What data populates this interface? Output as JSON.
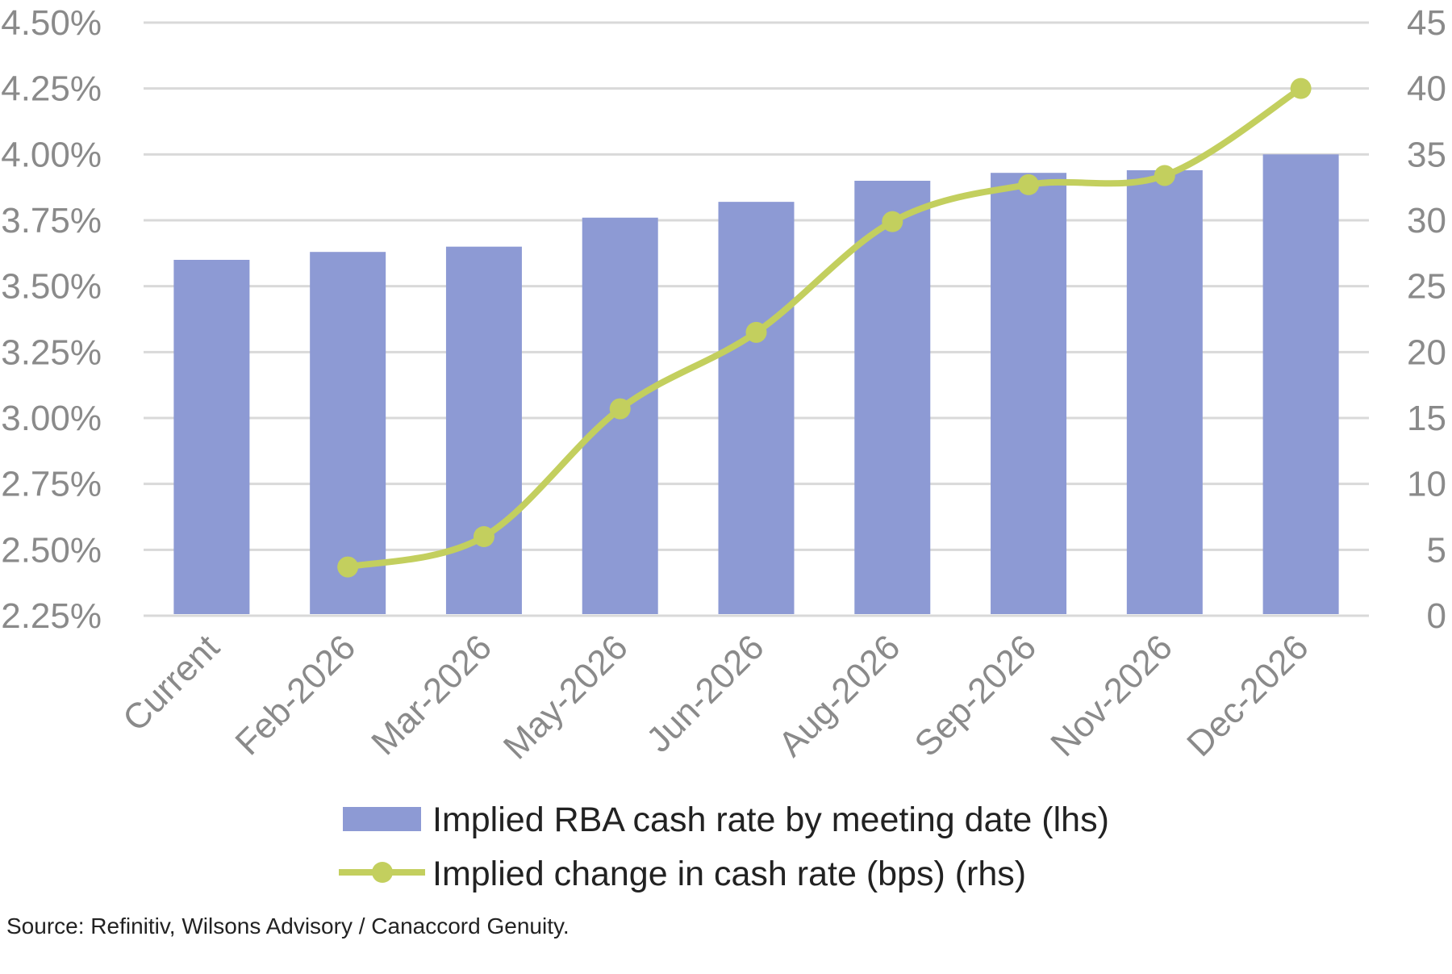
{
  "chart_data": {
    "type": "bar+line",
    "title": "",
    "categories": [
      "Current",
      "Feb-2026",
      "Mar-2026",
      "May-2026",
      "Jun-2026",
      "Aug-2026",
      "Sep-2026",
      "Nov-2026",
      "Dec-2026"
    ],
    "series": [
      {
        "name": "Implied RBA cash rate by meeting date (lhs)",
        "type": "bar",
        "axis": "left",
        "color": "#8d9ad4",
        "values": [
          3.6,
          3.63,
          3.65,
          3.76,
          3.82,
          3.9,
          3.93,
          3.94,
          4.0
        ]
      },
      {
        "name": "Implied change in cash rate (bps) (rhs)",
        "type": "line",
        "axis": "right",
        "color": "#c3cf5e",
        "values": [
          null,
          3.7,
          6.0,
          15.7,
          21.5,
          29.9,
          32.7,
          33.4,
          40.0
        ]
      }
    ],
    "left_axis": {
      "ylim": [
        2.25,
        4.5
      ],
      "ticks": [
        "2.25%",
        "2.50%",
        "2.75%",
        "3.00%",
        "3.25%",
        "3.50%",
        "3.75%",
        "4.00%",
        "4.25%",
        "4.50%"
      ]
    },
    "right_axis": {
      "ylim": [
        0,
        45
      ],
      "ticks": [
        "0",
        "5",
        "10",
        "15",
        "20",
        "25",
        "30",
        "35",
        "40",
        "45"
      ]
    },
    "grid": true,
    "legend_position": "bottom",
    "source": "Source: Refinitiv, Wilsons Advisory / Canaccord Genuity."
  }
}
